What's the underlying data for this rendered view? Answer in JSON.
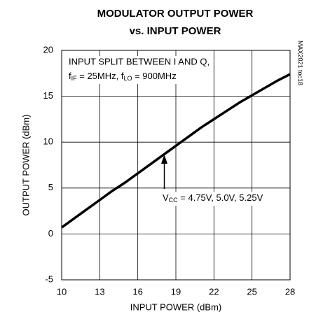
{
  "chart_data": {
    "type": "line",
    "title": [
      "MODULATOR OUTPUT POWER",
      "vs. INPUT POWER"
    ],
    "xlabel": "INPUT POWER (dBm)",
    "ylabel": "OUTPUT POWER (dBm)",
    "annotations": {
      "conditions_line1": "INPUT SPLIT BETWEEN I AND Q,",
      "conditions_line2": [
        "f",
        "IF",
        " = 25MHz, f",
        "LO",
        " = 900MHz"
      ],
      "supply": [
        "V",
        "CC",
        " = 4.75V, 5.0V, 5.25V"
      ],
      "figure_id": "MAX2021 toc18"
    },
    "x": [
      10,
      11,
      12,
      13,
      14,
      15,
      16,
      17,
      18,
      19,
      20,
      21,
      22,
      23,
      24,
      25,
      26,
      27,
      28
    ],
    "series": [
      {
        "name": "VCC = 4.75V, 5.0V, 5.25V",
        "color": "#000000",
        "values": [
          0.7,
          1.7,
          2.7,
          3.7,
          4.7,
          5.6,
          6.6,
          7.6,
          8.6,
          9.6,
          10.6,
          11.6,
          12.5,
          13.4,
          14.3,
          15.1,
          15.9,
          16.7,
          17.4
        ]
      }
    ],
    "xlim": [
      10,
      28
    ],
    "xticks": [
      10,
      13,
      16,
      19,
      22,
      25,
      28
    ],
    "ylim": [
      -5,
      20
    ],
    "yticks": [
      -5,
      0,
      5,
      10,
      15,
      20
    ],
    "grid": true
  }
}
